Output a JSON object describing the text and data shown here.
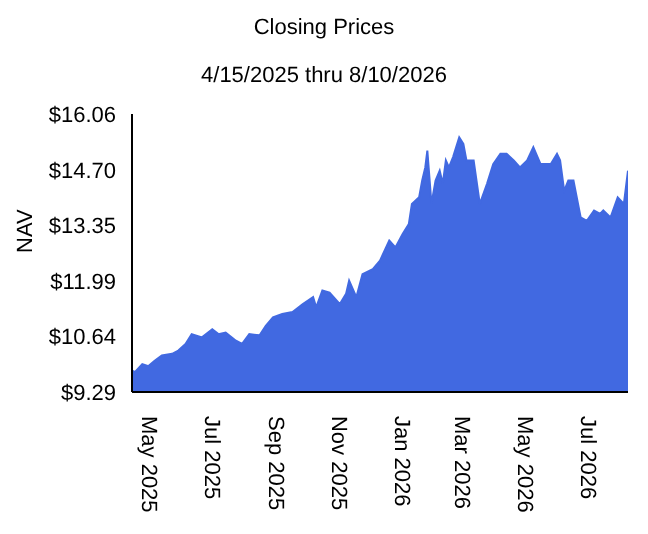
{
  "chart_data": {
    "type": "area",
    "title": "Closing Prices",
    "subtitle": "4/15/2025 thru 8/10/2026",
    "ylabel": "NAV",
    "x": [
      "2025-04-15",
      "2025-04-18",
      "2025-04-25",
      "2025-05-01",
      "2025-05-07",
      "2025-05-14",
      "2025-05-24",
      "2025-05-30",
      "2025-06-06",
      "2025-06-12",
      "2025-06-22",
      "2025-07-02",
      "2025-07-08",
      "2025-07-15",
      "2025-07-25",
      "2025-07-31",
      "2025-08-07",
      "2025-08-17",
      "2025-08-23",
      "2025-08-30",
      "2025-09-08",
      "2025-09-18",
      "2025-09-28",
      "2025-10-08",
      "2025-10-11",
      "2025-10-17",
      "2025-10-24",
      "2025-11-03",
      "2025-11-09",
      "2025-11-12",
      "2025-11-19",
      "2025-11-25",
      "2025-12-05",
      "2025-12-12",
      "2025-12-21",
      "2025-12-27",
      "2026-01-03",
      "2026-01-09",
      "2026-01-12",
      "2026-01-19",
      "2026-01-22",
      "2026-01-25",
      "2026-01-27",
      "2026-01-31",
      "2026-02-04",
      "2026-02-08",
      "2026-02-11",
      "2026-02-14",
      "2026-02-17",
      "2026-02-21",
      "2026-02-27",
      "2026-03-03",
      "2026-03-06",
      "2026-03-13",
      "2026-03-19",
      "2026-03-26",
      "2026-04-01",
      "2026-04-08",
      "2026-04-14",
      "2026-04-21",
      "2026-04-27",
      "2026-05-04",
      "2026-05-10",
      "2026-05-17",
      "2026-05-27",
      "2026-06-02",
      "2026-06-05",
      "2026-06-09",
      "2026-06-13",
      "2026-06-18",
      "2026-06-25",
      "2026-07-01",
      "2026-07-08",
      "2026-07-14",
      "2026-07-17",
      "2026-07-24",
      "2026-07-31",
      "2026-08-06",
      "2026-08-10"
    ],
    "series": [
      {
        "color": "#4169e1",
        "values": [
          9.81,
          9.78,
          9.97,
          9.92,
          10.05,
          10.18,
          10.22,
          10.3,
          10.46,
          10.7,
          10.62,
          10.82,
          10.7,
          10.74,
          10.54,
          10.46,
          10.7,
          10.67,
          10.9,
          11.11,
          11.19,
          11.24,
          11.43,
          11.6,
          11.35,
          11.76,
          11.71,
          11.43,
          11.68,
          12.0,
          11.6,
          12.16,
          12.28,
          12.49,
          12.98,
          12.81,
          13.14,
          13.38,
          13.87,
          14.03,
          14.44,
          14.76,
          15.17,
          13.87,
          14.44,
          14.68,
          14.36,
          14.93,
          14.76,
          15.01,
          15.49,
          15.33,
          14.93,
          14.93,
          13.87,
          14.36,
          14.84,
          15.09,
          15.09,
          14.93,
          14.76,
          14.93,
          15.25,
          14.84,
          14.84,
          15.09,
          14.93,
          14.19,
          14.44,
          14.44,
          13.54,
          13.46,
          13.71,
          13.63,
          13.71,
          13.54,
          14.03,
          13.87,
          14.68
        ]
      }
    ],
    "xlim": [
      "2025-04-15",
      "2026-08-10"
    ],
    "xticks": [
      {
        "value": "2025-05-01",
        "label": "May 2025"
      },
      {
        "value": "2025-07-01",
        "label": "Jul 2025"
      },
      {
        "value": "2025-09-01",
        "label": "Sep 2025"
      },
      {
        "value": "2025-11-01",
        "label": "Nov 2025"
      },
      {
        "value": "2026-01-01",
        "label": "Jan 2026"
      },
      {
        "value": "2026-03-01",
        "label": "Mar 2026"
      },
      {
        "value": "2026-05-01",
        "label": "May 2026"
      },
      {
        "value": "2026-07-01",
        "label": "Jul 2026"
      }
    ],
    "ylim": [
      9.29,
      16.06
    ],
    "yticks": [
      {
        "value": 9.29,
        "label": "$9.29"
      },
      {
        "value": 10.64,
        "label": "$10.64"
      },
      {
        "value": 11.99,
        "label": "$11.99"
      },
      {
        "value": 13.35,
        "label": "$13.35"
      },
      {
        "value": 14.7,
        "label": "$14.70"
      },
      {
        "value": 16.06,
        "label": "$16.06"
      }
    ],
    "grid": false,
    "legend": false
  }
}
